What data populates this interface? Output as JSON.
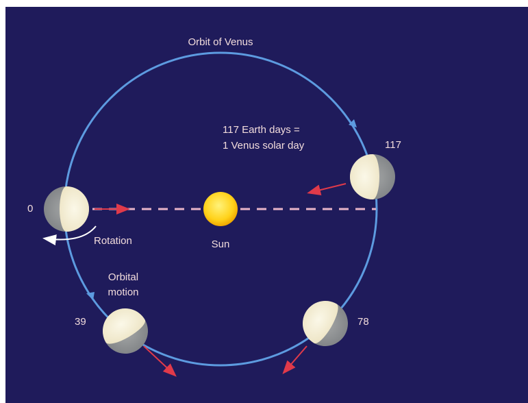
{
  "title": "Orbit of Venus",
  "note": {
    "line1": "117 Earth days =",
    "line2": "1 Venus solar day"
  },
  "sun": {
    "label": "Sun"
  },
  "rotation": {
    "label": "Rotation"
  },
  "orbital_motion": {
    "line1": "Orbital",
    "line2": "motion"
  },
  "positions": [
    {
      "label": "0"
    },
    {
      "label": "39"
    },
    {
      "label": "78"
    },
    {
      "label": "117"
    }
  ]
}
